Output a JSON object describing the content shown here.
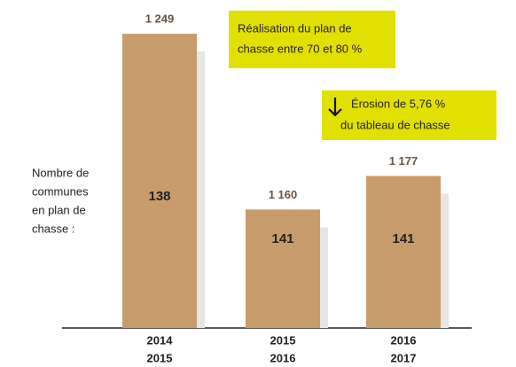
{
  "chart_data": {
    "type": "bar",
    "categories": [
      [
        "2014",
        "2015"
      ],
      [
        "2015",
        "2016"
      ],
      [
        "2016",
        "2017"
      ]
    ],
    "values": [
      1249,
      1160,
      1177
    ],
    "value_labels": [
      "1 249",
      "1 160",
      "1 177"
    ],
    "color": "#c89b6a",
    "ylim": [
      1100,
      1260
    ],
    "inner_values": [
      138,
      141,
      141
    ],
    "inner_label": [
      "Nombre de",
      "communes",
      "en plan de",
      "chasse :"
    ],
    "annotations": [
      {
        "lines": [
          "Réalisation du plan de",
          "chasse entre 70 et 80 %"
        ],
        "color": "#e2e000"
      },
      {
        "lines": [
          "Érosion de 5,76 %",
          "du tableau de chasse"
        ],
        "color": "#e2e000"
      }
    ]
  }
}
